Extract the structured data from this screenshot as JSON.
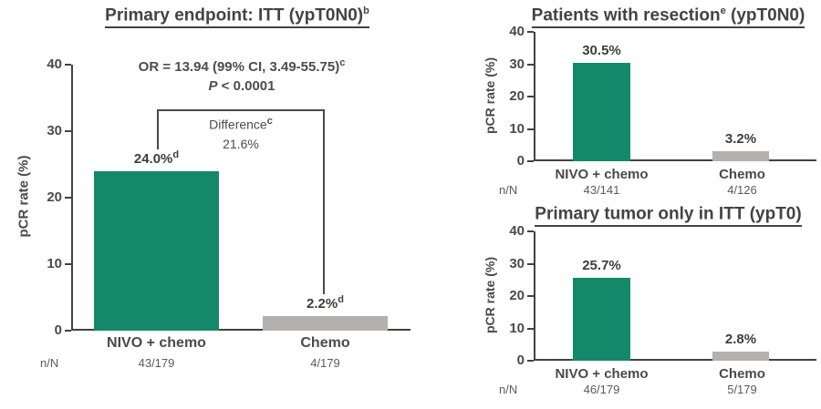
{
  "chart_data": [
    {
      "type": "bar",
      "title": {
        "pre": "Primary endpoint: ITT (ypT0N0)",
        "sup": "b",
        "post": ""
      },
      "stats": {
        "or_text": "OR = 13.94 (99% CI, 3.49-55.75)",
        "or_sup": "c",
        "p_italic": "P",
        "p_rest": " < 0.0001"
      },
      "difference": {
        "label": "Difference",
        "label_sup": "c",
        "value": "21.6%"
      },
      "categories": [
        "NIVO + chemo",
        "Chemo"
      ],
      "values": [
        24.0,
        2.2
      ],
      "value_labels": [
        {
          "text": "24.0%",
          "sup": "d"
        },
        {
          "text": "2.2%",
          "sup": "d"
        }
      ],
      "n_label": "n/N",
      "n_over_N": [
        "43/179",
        "4/179"
      ],
      "ylabel": "pCR rate (%)",
      "ylim": [
        0,
        40
      ],
      "yticks": [
        0,
        10,
        20,
        30,
        40
      ],
      "bar_colors": [
        "#13896A",
        "#B3B0AD"
      ],
      "grid": false,
      "legend": "none"
    },
    {
      "type": "bar",
      "title": {
        "pre": "Patients with resection",
        "sup": "e",
        "post": " (ypT0N0)"
      },
      "categories": [
        "NIVO + chemo",
        "Chemo"
      ],
      "values": [
        30.5,
        3.2
      ],
      "value_labels": [
        {
          "text": "30.5%",
          "sup": ""
        },
        {
          "text": "3.2%",
          "sup": ""
        }
      ],
      "n_label": "n/N",
      "n_over_N": [
        "43/141",
        "4/126"
      ],
      "ylabel": "pCR rate (%)",
      "ylim": [
        0,
        40
      ],
      "yticks": [
        0,
        10,
        20,
        30,
        40
      ],
      "bar_colors": [
        "#13896A",
        "#B3B0AD"
      ],
      "grid": false,
      "legend": "none"
    },
    {
      "type": "bar",
      "title": {
        "pre": "Primary tumor only in ITT (ypT0)",
        "sup": "",
        "post": ""
      },
      "categories": [
        "NIVO + chemo",
        "Chemo"
      ],
      "values": [
        25.7,
        2.8
      ],
      "value_labels": [
        {
          "text": "25.7%",
          "sup": ""
        },
        {
          "text": "2.8%",
          "sup": ""
        }
      ],
      "n_label": "n/N",
      "n_over_N": [
        "46/179",
        "5/179"
      ],
      "ylabel": "pCR rate (%)",
      "ylim": [
        0,
        40
      ],
      "yticks": [
        0,
        10,
        20,
        30,
        40
      ],
      "bar_colors": [
        "#13896A",
        "#B3B0AD"
      ],
      "grid": false,
      "legend": "none"
    }
  ],
  "colors": {
    "bar_green": "#13896A",
    "bar_gray": "#B3B0AD",
    "axis": "#424242",
    "text": "#4A4A4A"
  }
}
